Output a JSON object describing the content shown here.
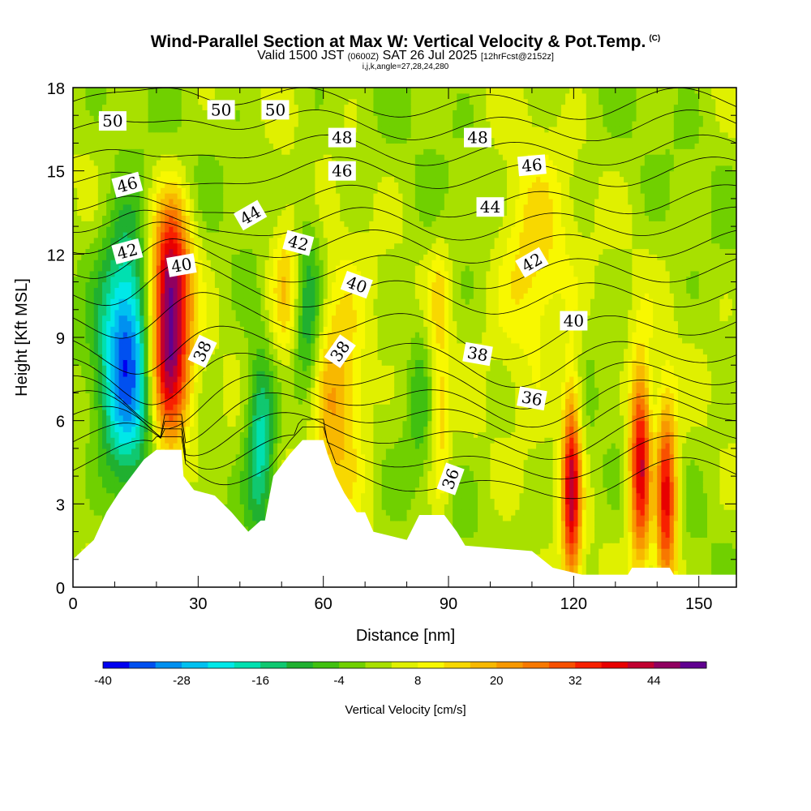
{
  "header": {
    "title": "Wind-Parallel Section at Max W: Vertical Velocity & Pot.Temp.",
    "copyright": "(C)",
    "valid_prefix": "Valid 1500 JST",
    "utc": "(0600Z)",
    "valid_date": "SAT 26 Jul 2025",
    "fcst": "[12hrFcst@2152z]",
    "grid": "i,j,k,angle=27,28,24,280"
  },
  "chart_data": {
    "type": "heatmap",
    "xlabel": "Distance [nm]",
    "ylabel": "Height [Kft MSL]",
    "xlim": [
      0,
      159
    ],
    "ylim": [
      0,
      18
    ],
    "x_ticks": [
      0,
      30,
      60,
      90,
      120,
      150
    ],
    "y_ticks": [
      0,
      3,
      6,
      9,
      12,
      15,
      18
    ],
    "colorbar": {
      "label": "Vertical Velocity [cm/s]",
      "min": -40,
      "max": 52,
      "step": 4,
      "tick_labels": [
        "-40",
        "-28",
        "-16",
        "-4",
        "8",
        "20",
        "32",
        "44"
      ],
      "tick_values": [
        -40,
        -28,
        -16,
        -4,
        8,
        20,
        32,
        44
      ],
      "colors": [
        "#0000f0",
        "#0050f0",
        "#0090f0",
        "#00c0f0",
        "#00e8e8",
        "#00e0b0",
        "#10c870",
        "#20b030",
        "#40c010",
        "#70d000",
        "#a8e000",
        "#e0f000",
        "#f8f800",
        "#f8d800",
        "#f8b800",
        "#f89800",
        "#f87800",
        "#f85000",
        "#f82000",
        "#e80000",
        "#c00030",
        "#900060",
        "#600090"
      ]
    },
    "terrain_kft": [
      [
        0,
        1.0
      ],
      [
        5,
        1.7
      ],
      [
        8,
        2.7
      ],
      [
        11,
        3.4
      ],
      [
        14,
        4.0
      ],
      [
        17,
        4.6
      ],
      [
        20,
        4.95
      ],
      [
        26,
        4.95
      ],
      [
        26.5,
        4.0
      ],
      [
        29,
        3.5
      ],
      [
        34,
        3.3
      ],
      [
        38,
        2.7
      ],
      [
        42,
        2.0
      ],
      [
        45,
        2.4
      ],
      [
        46,
        2.4
      ],
      [
        48,
        4.0
      ],
      [
        52,
        4.8
      ],
      [
        55,
        5.3
      ],
      [
        60,
        5.3
      ],
      [
        61,
        4.8
      ],
      [
        63,
        4.0
      ],
      [
        65,
        3.4
      ],
      [
        68,
        2.7
      ],
      [
        70,
        2.7
      ],
      [
        72,
        2.0
      ],
      [
        80,
        1.7
      ],
      [
        83,
        2.6
      ],
      [
        89,
        2.6
      ],
      [
        92,
        2.0
      ],
      [
        94,
        1.5
      ],
      [
        110,
        1.3
      ],
      [
        115,
        0.7
      ],
      [
        122,
        0.45
      ],
      [
        133,
        0.45
      ],
      [
        134,
        0.7
      ],
      [
        143,
        0.7
      ],
      [
        144,
        0.45
      ],
      [
        159,
        0.45
      ]
    ],
    "updrafts": [
      {
        "x": 23,
        "z": 9.0,
        "w": 48,
        "sx": 3.5,
        "sz": 2.8
      },
      {
        "x": 24,
        "z": 12.0,
        "w": 14,
        "sx": 3,
        "sz": 1.5
      },
      {
        "x": 51.5,
        "z": 10.8,
        "w": 16,
        "sx": 3,
        "sz": 2.0
      },
      {
        "x": 63,
        "z": 7.0,
        "w": 20,
        "sx": 5,
        "sz": 2.8
      },
      {
        "x": 88,
        "z": 6.0,
        "w": 12,
        "sx": 1.6,
        "sz": 2.5
      },
      {
        "x": 88,
        "z": 10.7,
        "w": 8,
        "sx": 2,
        "sz": 1.2
      },
      {
        "x": 110,
        "z": 11.5,
        "w": 14,
        "sx": 6,
        "sz": 2.6
      },
      {
        "x": 119.5,
        "z": 3.6,
        "w": 38,
        "sx": 1.6,
        "sz": 2.7
      },
      {
        "x": 136,
        "z": 4.5,
        "w": 40,
        "sx": 1.9,
        "sz": 2.5
      },
      {
        "x": 142,
        "z": 3.2,
        "w": 38,
        "sx": 2.0,
        "sz": 2.5
      }
    ],
    "downdrafts": [
      {
        "x": 13,
        "z": 8.5,
        "w": -36,
        "sx": 4.5,
        "sz": 3.2
      },
      {
        "x": 45,
        "z": 5.2,
        "w": -22,
        "sx": 2.5,
        "sz": 2.3
      },
      {
        "x": 56,
        "z": 9.5,
        "w": -18,
        "sx": 2.5,
        "sz": 2.8
      },
      {
        "x": 83,
        "z": 7.0,
        "w": -8,
        "sx": 2,
        "sz": 2.0
      },
      {
        "x": 139.5,
        "z": 3.5,
        "w": -10,
        "sx": 1.2,
        "sz": 2.0
      }
    ],
    "theta_contours": [
      {
        "v": 36,
        "z": 4.2
      },
      {
        "v": 37,
        "z": 5.0
      },
      {
        "v": 38,
        "z": 5.8
      },
      {
        "v": 39,
        "z": 6.5
      },
      {
        "v": 40,
        "z": 7.1
      },
      {
        "v": 41,
        "z": 7.8
      },
      {
        "v": 42,
        "z": 8.6
      },
      {
        "v": 43,
        "z": 9.6
      },
      {
        "v": 44,
        "z": 10.6
      },
      {
        "v": 45,
        "z": 11.5
      },
      {
        "v": 46,
        "z": 12.4
      },
      {
        "v": 47,
        "z": 13.2
      },
      {
        "v": 48,
        "z": 14.0
      },
      {
        "v": 49,
        "z": 15.0
      },
      {
        "v": 50,
        "z": 15.8
      },
      {
        "v": 51,
        "z": 16.7
      },
      {
        "v": 52,
        "z": 17.5
      }
    ],
    "contour_labels": [
      {
        "text": "50",
        "x": 9.5,
        "z": 16.8,
        "angle": 0
      },
      {
        "text": "50",
        "x": 35.5,
        "z": 17.2,
        "angle": 0
      },
      {
        "text": "50",
        "x": 48.5,
        "z": 17.2,
        "angle": 0
      },
      {
        "text": "48",
        "x": 64.5,
        "z": 16.2,
        "angle": 0
      },
      {
        "text": "48",
        "x": 97,
        "z": 16.2,
        "angle": 0
      },
      {
        "text": "46",
        "x": 13,
        "z": 14.5,
        "angle": -15
      },
      {
        "text": "46",
        "x": 64.5,
        "z": 15.0,
        "angle": 0
      },
      {
        "text": "46",
        "x": 110,
        "z": 15.2,
        "angle": -5
      },
      {
        "text": "44",
        "x": 42.5,
        "z": 13.4,
        "angle": -30
      },
      {
        "text": "44",
        "x": 100,
        "z": 13.7,
        "angle": 0
      },
      {
        "text": "42",
        "x": 13,
        "z": 12.1,
        "angle": -15
      },
      {
        "text": "42",
        "x": 54,
        "z": 12.4,
        "angle": 15
      },
      {
        "text": "42",
        "x": 110,
        "z": 11.7,
        "angle": -30
      },
      {
        "text": "40",
        "x": 26,
        "z": 11.6,
        "angle": -10
      },
      {
        "text": "40",
        "x": 68,
        "z": 10.9,
        "angle": 20
      },
      {
        "text": "40",
        "x": 120,
        "z": 9.6,
        "angle": 0
      },
      {
        "text": "38",
        "x": 31,
        "z": 8.5,
        "angle": -65
      },
      {
        "text": "38",
        "x": 64,
        "z": 8.5,
        "angle": -55
      },
      {
        "text": "38",
        "x": 97,
        "z": 8.4,
        "angle": 10
      },
      {
        "text": "36",
        "x": 110,
        "z": 6.8,
        "angle": 10
      },
      {
        "text": "36",
        "x": 90.5,
        "z": 3.9,
        "angle": -70
      }
    ]
  }
}
